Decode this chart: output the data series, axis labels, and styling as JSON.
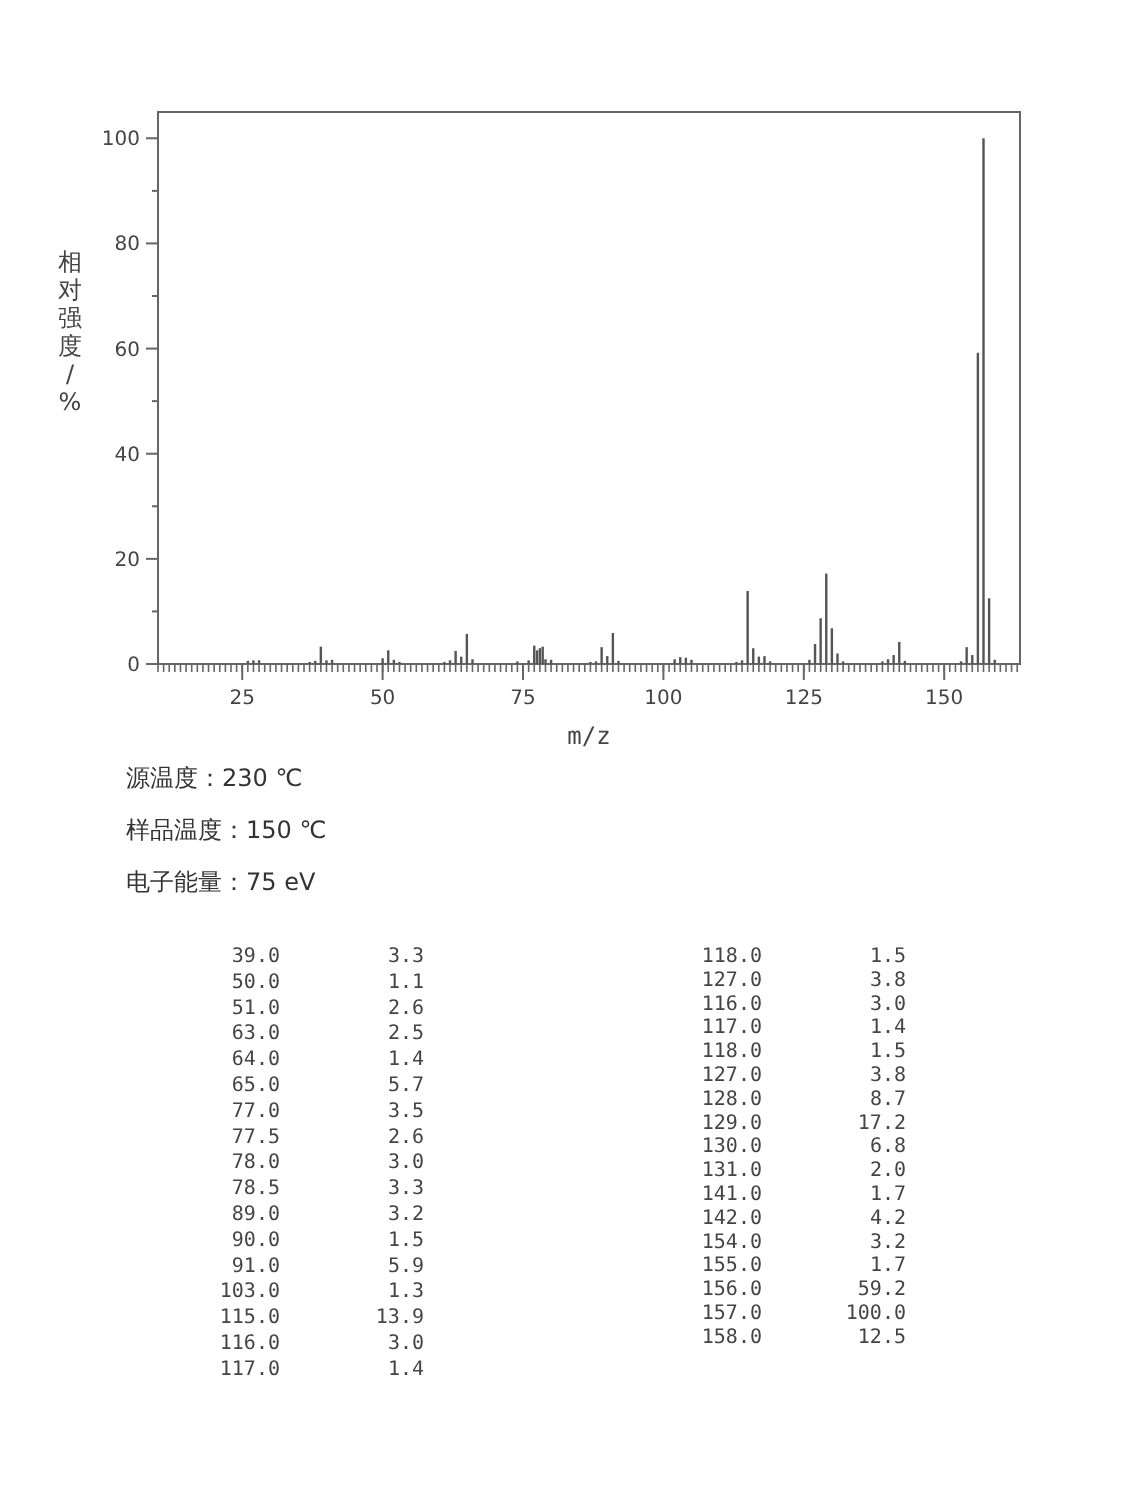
{
  "chart_data": [
    {
      "type": "bar",
      "xlabel": "m/z",
      "ylabel": "相对强度/%",
      "xlim": [
        10,
        163.5
      ],
      "ylim": [
        0,
        105
      ],
      "xticks": [
        25,
        50,
        75,
        100,
        125,
        150
      ],
      "yticks": [
        0,
        20,
        40,
        60,
        80,
        100
      ],
      "grid": false,
      "annotations": [
        "源温度：230 ℃",
        "样品温度：150 ℃",
        "电子能量：75 eV"
      ],
      "series": [
        {
          "color": "#555555",
          "x": [
            26,
            27,
            28,
            37,
            38,
            39,
            40,
            41,
            50,
            51,
            52,
            53,
            61,
            62,
            63,
            64,
            65,
            66,
            74,
            76,
            77,
            77.5,
            78,
            78.5,
            79,
            80,
            87,
            88,
            89,
            90,
            91,
            92,
            102,
            103,
            104,
            105,
            113,
            114,
            115,
            116,
            117,
            118,
            119,
            126,
            127,
            128,
            129,
            130,
            131,
            132,
            139,
            140,
            141,
            142,
            143,
            153,
            154,
            155,
            156,
            157,
            158,
            159
          ],
          "values": [
            0.6,
            0.7,
            0.7,
            0.4,
            0.6,
            3.3,
            0.7,
            0.8,
            1.1,
            2.6,
            0.8,
            0.4,
            0.4,
            0.7,
            2.5,
            1.4,
            5.7,
            0.9,
            0.5,
            0.7,
            3.5,
            2.6,
            3.0,
            3.3,
            0.9,
            0.8,
            0.4,
            0.5,
            3.2,
            1.5,
            5.9,
            0.6,
            0.9,
            1.3,
            1.2,
            0.8,
            0.4,
            0.7,
            13.9,
            3.0,
            1.4,
            1.5,
            0.5,
            0.8,
            3.8,
            8.7,
            17.2,
            6.8,
            2.0,
            0.5,
            0.5,
            0.9,
            1.7,
            4.2,
            0.6,
            0.5,
            3.2,
            1.7,
            59.2,
            100.0,
            12.5,
            0.8
          ]
        }
      ]
    },
    {
      "type": "other",
      "annotations": [
        "39.0",
        "3.3",
        "50.0",
        "1.1",
        "51.0",
        "2.6",
        "63.0",
        "2.5",
        "64.0",
        "1.4",
        "65.0",
        "5.7",
        "77.0",
        "3.5",
        "77.5",
        "2.6",
        "78.0",
        "3.0",
        "78.5",
        "3.3",
        "89.0",
        "3.2",
        "90.0",
        "1.5",
        "91.0",
        "5.9",
        "103.0",
        "1.3",
        "115.0",
        "13.9",
        "116.0",
        "3.0",
        "117.0",
        "1.4",
        "118.0",
        "1.5",
        "127.0",
        "3.8",
        "116.0",
        "3.0",
        "117.0",
        "1.4",
        "118.0",
        "1.5",
        "127.0",
        "3.8",
        "128.0",
        "8.7",
        "129.0",
        "17.2",
        "130.0",
        "6.8",
        "131.0",
        "2.0",
        "141.0",
        "1.7",
        "142.0",
        "4.2",
        "154.0",
        "3.2",
        "155.0",
        "1.7",
        "156.0",
        "59.2",
        "157.0",
        "100.0",
        "158.0",
        "12.5"
      ]
    }
  ]
}
